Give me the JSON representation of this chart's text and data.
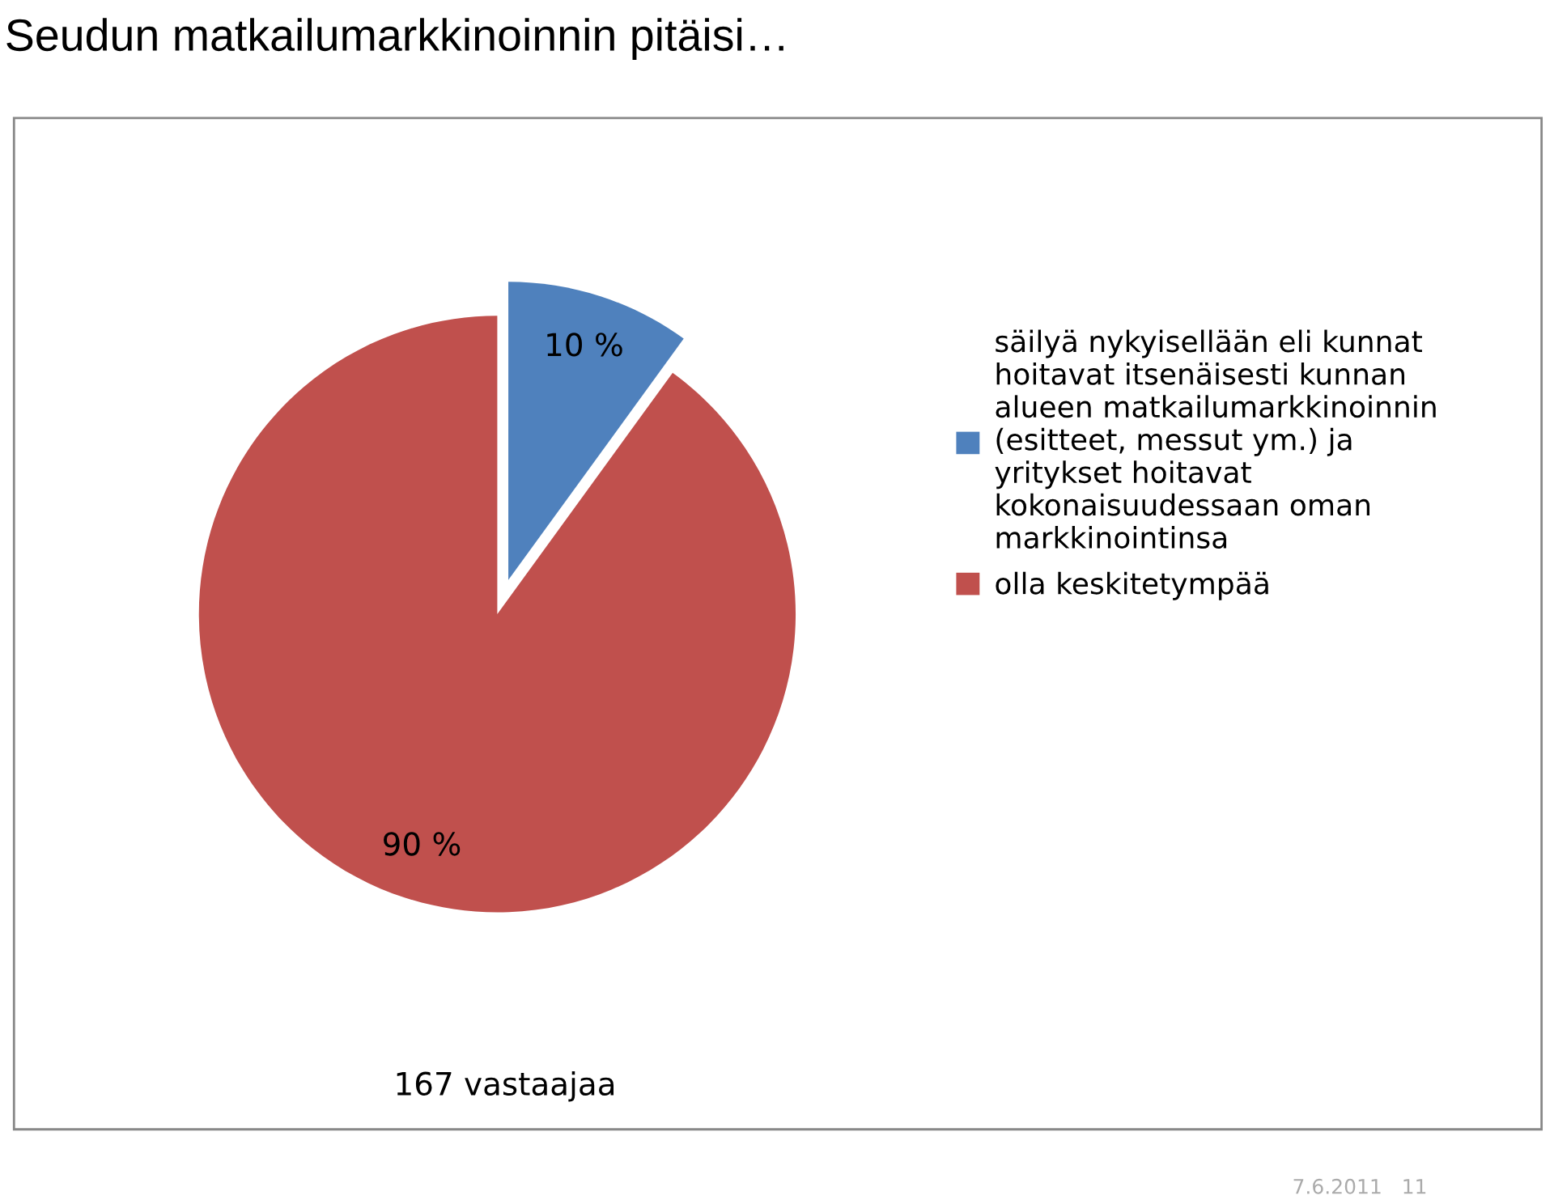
{
  "chart_data": {
    "type": "pie",
    "title": "Seudun matkailumarkkinoinnin pitäisi…",
    "categories": [
      "säilyä nykyisellään eli kunnat\nhoitavat itsenäisesti kunnan\nalueen matkailumarkkinoinnin\n(esitteet, messut ym.) ja\nyritykset hoitavat\nkokonaisuudessaan oman\nmarkkinointinsa",
      "olla keskitetympää"
    ],
    "values": [
      10,
      90
    ],
    "colors": [
      "#4f81bd",
      "#c0504d"
    ],
    "value_labels": [
      "10 %",
      "90 %"
    ],
    "legend": "right",
    "annotations": [
      "167 vastaajaa",
      "7.6.2011   11"
    ]
  }
}
